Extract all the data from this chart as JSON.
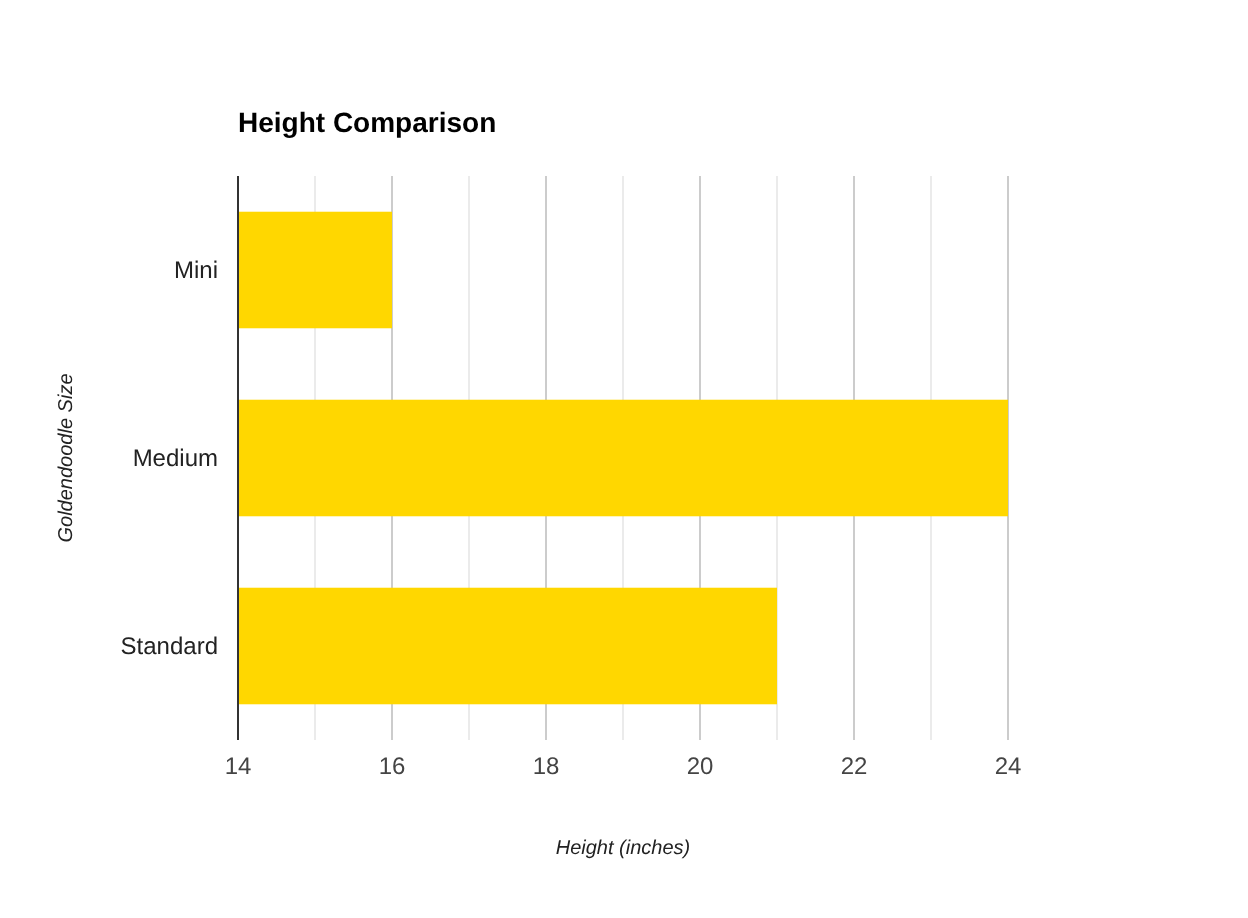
{
  "chart_data": {
    "type": "bar",
    "orientation": "horizontal",
    "title": "Height Comparison",
    "xlabel": "Height (inches)",
    "ylabel": "Goldendoodle Size",
    "categories": [
      "Mini",
      "Medium",
      "Standard"
    ],
    "values": [
      16,
      24,
      21
    ],
    "color": "#ffd700",
    "xlim": [
      14,
      24
    ],
    "xticks": [
      14,
      {
        "value": 15,
        "label": null
      },
      16,
      {
        "value": 17,
        "label": null
      },
      18,
      {
        "value": 19,
        "label": null
      },
      20,
      {
        "value": 21,
        "label": null
      },
      22,
      {
        "value": 23,
        "label": null
      },
      24
    ],
    "grid": true
  }
}
